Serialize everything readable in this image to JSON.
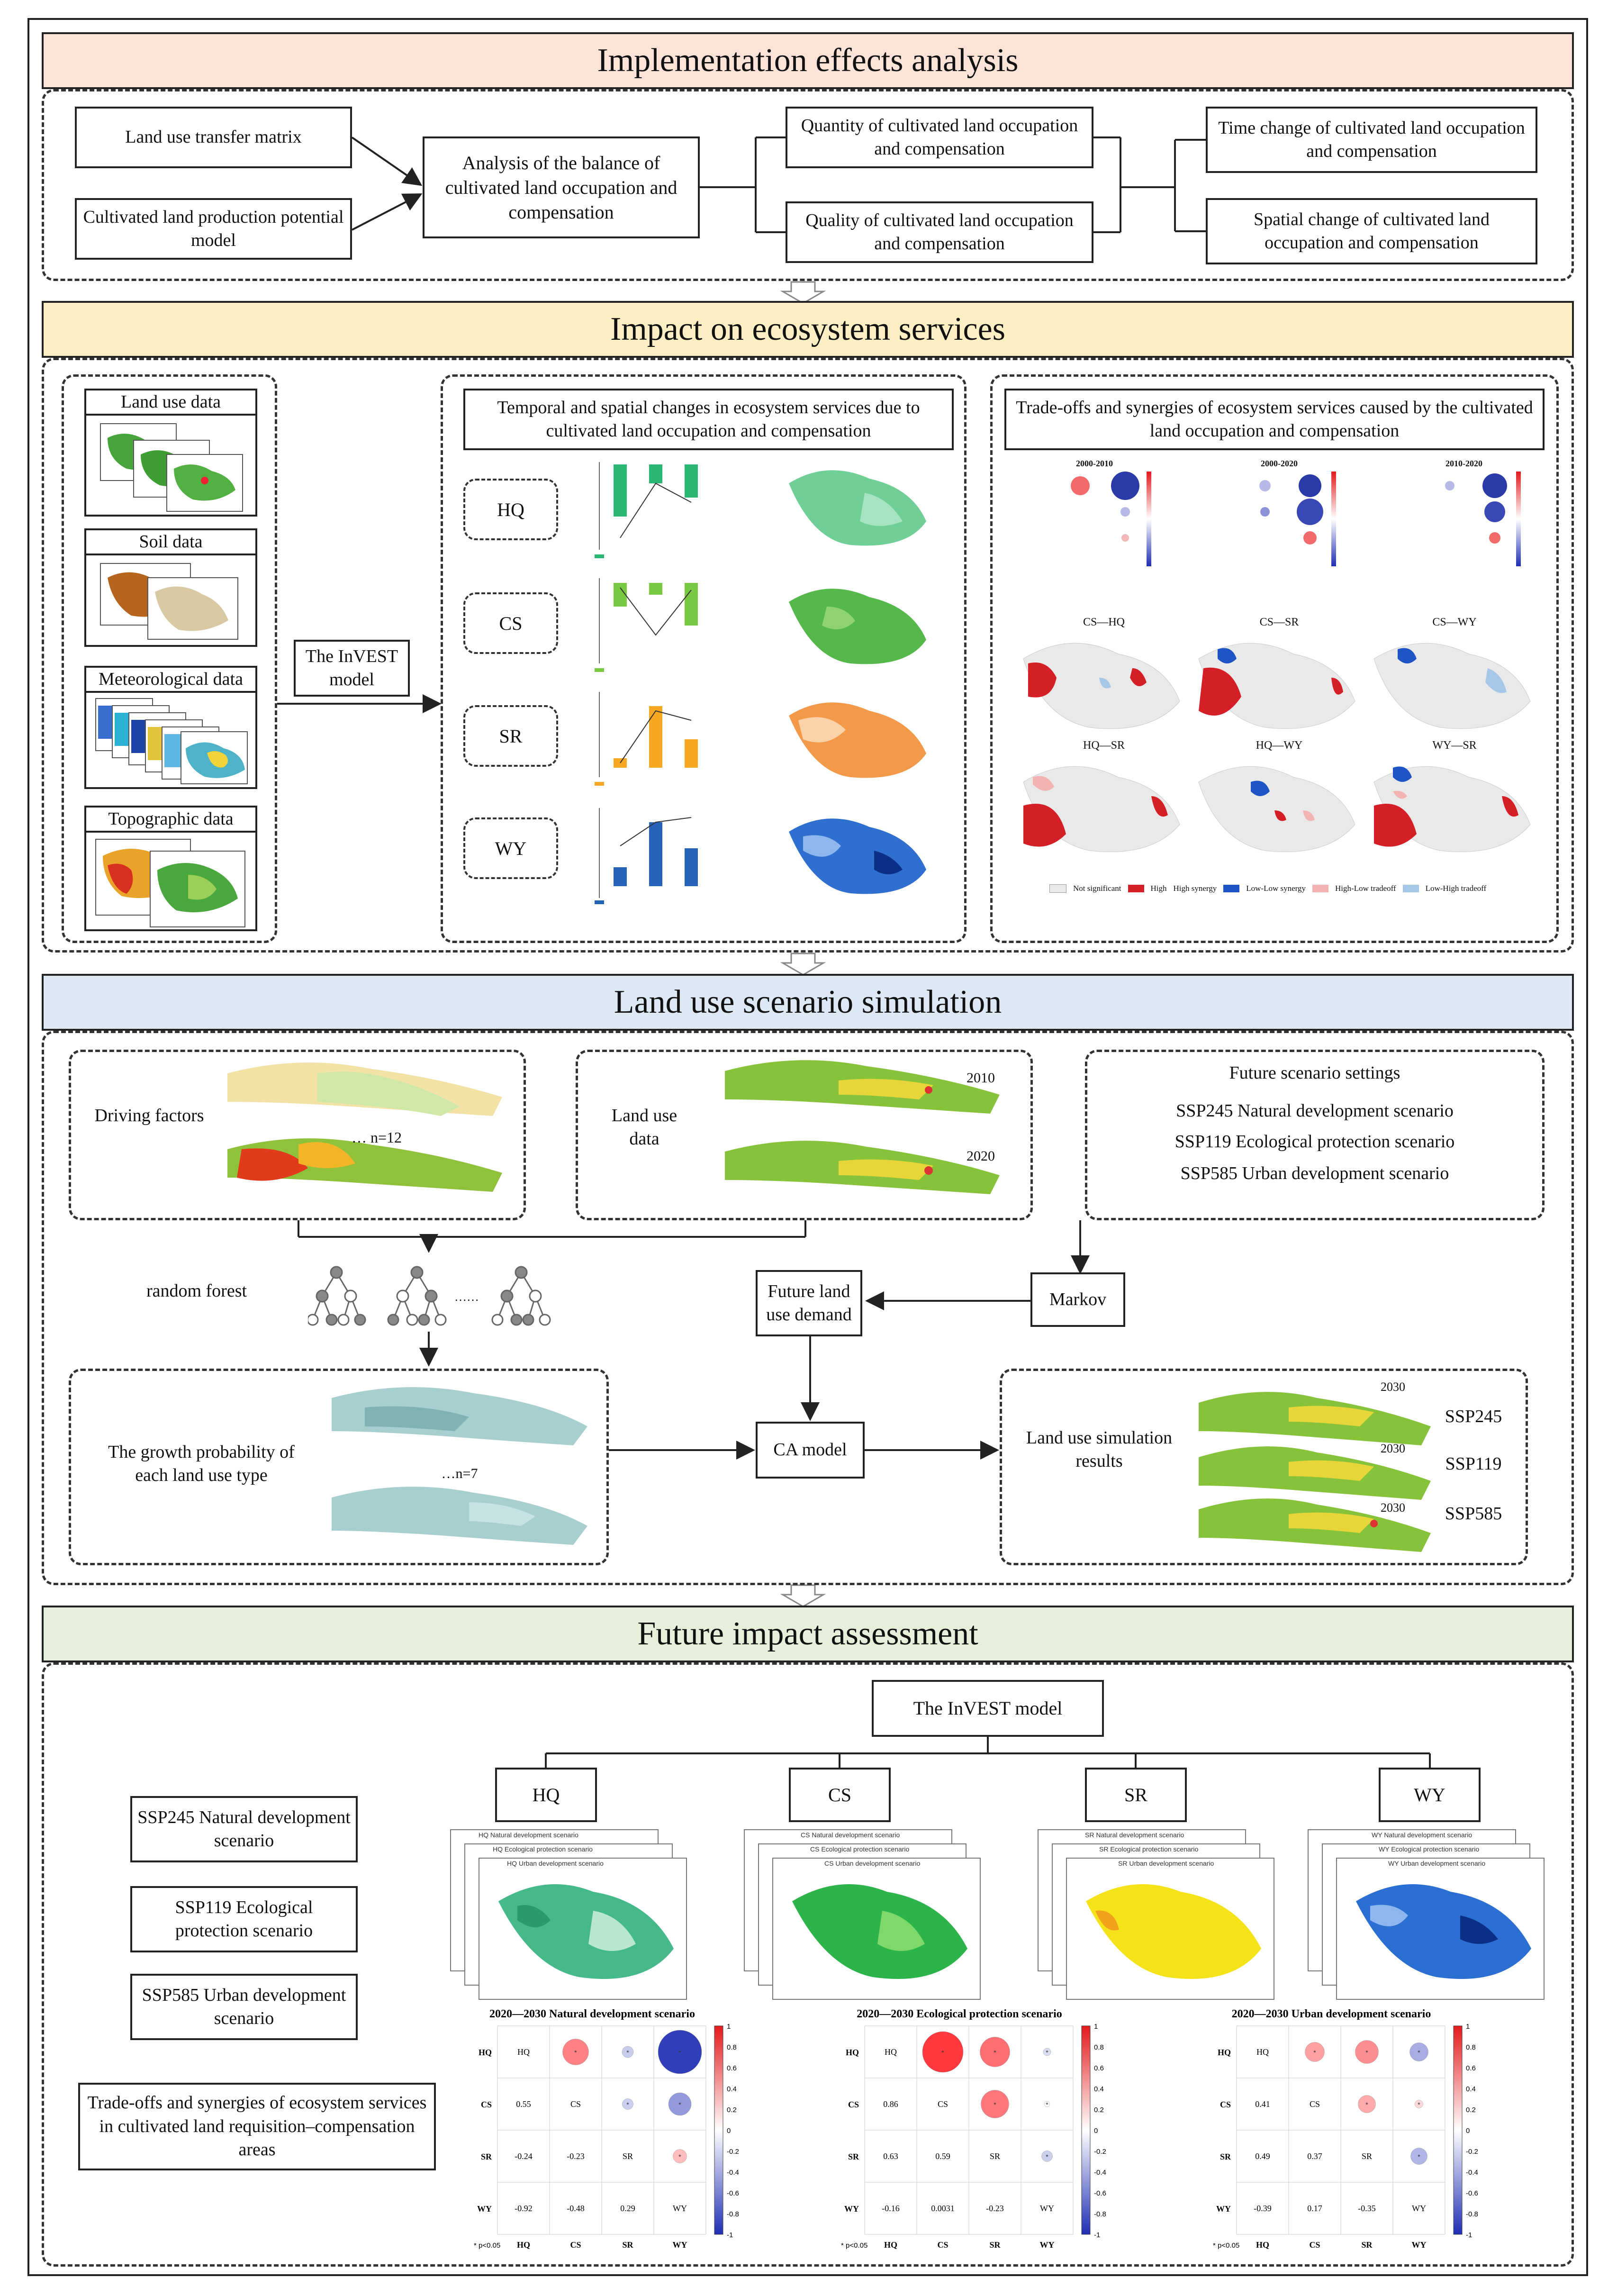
{
  "sections": {
    "s1": "Implementation effects analysis",
    "s2": "Impact on ecosystem services",
    "s3": "Land use scenario simulation",
    "s4": "Future impact assessment"
  },
  "colors": {
    "s1_band": "#fbe3d8",
    "s2_band": "#fdefc3",
    "s3_band": "#dce8f4",
    "s4_band": "#e6efd9",
    "hq": "#2bb673",
    "cs": "#7ac943",
    "sr": "#f7a823",
    "wy": "#2563b8",
    "pos": "#e31a1c",
    "neg": "#1f2eb4"
  },
  "s1": {
    "transfer_matrix": "Land use transfer matrix",
    "production_model": "Cultivated land production potential model",
    "balance_analysis": "Analysis of the balance of cultivated land occupation and compensation",
    "quantity": "Quantity of cultivated land occupation and compensation",
    "quality": "Quality of cultivated land occupation and compensation",
    "time_change": "Time change of cultivated land occupation and compensation",
    "spatial_change": "Spatial change of cultivated land occupation and compensation"
  },
  "s2": {
    "inputs": [
      "Land use data",
      "Soil data",
      "Meteorological data",
      "Topographic data"
    ],
    "invest": "The InVEST model",
    "temporal_title": "Temporal and spatial changes in ecosystem services due to cultivated land occupation and compensation",
    "services": [
      "HQ",
      "CS",
      "SR",
      "WY"
    ],
    "tradeoff_title": "Trade-offs and synergies of ecosystem services caused by the cultivated land occupation and compensation",
    "periods": [
      "2000-2010",
      "2000-2020",
      "2010-2020"
    ],
    "pair_maps": [
      "CS—HQ",
      "CS—SR",
      "CS—WY",
      "HQ—SR",
      "HQ—WY",
      "WY—SR"
    ],
    "legend": [
      "Not significant",
      "High",
      "High synergy",
      "Low-Low synergy",
      "High-Low tradeoff",
      "Low-High tradeoff"
    ]
  },
  "s3": {
    "driving_factors": "Driving factors",
    "n12": "… n=12",
    "land_use_data": "Land use data",
    "year_2010": "2010",
    "year_2020": "2020",
    "future_settings_title": "Future scenario settings",
    "scenarios": [
      "SSP245 Natural development scenario",
      "SSP119 Ecological protection scenario",
      "SSP585 Urban development scenario"
    ],
    "random_forest": "random forest",
    "dots": "……",
    "future_demand": "Future land use demand",
    "markov": "Markov",
    "growth_prob": "The growth probability of each land use type",
    "n7": "…n=7",
    "ca_model": "CA model",
    "sim_results": "Land use simulation results",
    "sim_year": "2030",
    "ssp_labels": [
      "SSP245",
      "SSP119",
      "SSP585"
    ]
  },
  "s4": {
    "invest": "The InVEST model",
    "services": [
      "HQ",
      "CS",
      "SR",
      "WY"
    ],
    "left_boxes": [
      "SSP245 Natural development scenario",
      "SSP119 Ecological protection scenario",
      "SSP585 Urban development scenario",
      "Trade-offs and synergies of ecosystem services in cultivated land requisition–compensation areas"
    ],
    "map_labels": {
      "HQ": [
        "HQ Natural development scenario",
        "HQ Ecological protection scenario",
        "HQ Urban development scenario"
      ],
      "CS": [
        "CS Natural development scenario",
        "CS Ecological protection scenario",
        "CS Urban development scenario"
      ],
      "SR": [
        "SR Natural development scenario",
        "SR Ecological protection scenario",
        "SR Urban development scenario"
      ],
      "WY": [
        "WY Natural development scenario",
        "WY Ecological protection scenario",
        "WY Urban development scenario"
      ]
    },
    "pnote": "* p<0.05",
    "colorbar_ticks": [
      "1",
      "0.8",
      "0.6",
      "0.4",
      "0.2",
      "0",
      "-0.2",
      "-0.4",
      "-0.6",
      "-0.8",
      "-1"
    ]
  },
  "chart_data": [
    {
      "type": "heatmap",
      "title": "2020—2030 Natural development scenario",
      "categories": [
        "HQ",
        "CS",
        "SR",
        "WY"
      ],
      "matrix": [
        [
          1,
          0.55,
          -0.24,
          -0.92
        ],
        [
          0.55,
          1,
          -0.23,
          -0.48
        ],
        [
          -0.24,
          -0.23,
          1,
          0.29
        ],
        [
          -0.92,
          -0.48,
          0.29,
          1
        ]
      ]
    },
    {
      "type": "heatmap",
      "title": "2020—2030 Ecological protection scenario",
      "categories": [
        "HQ",
        "CS",
        "SR",
        "WY"
      ],
      "matrix": [
        [
          1,
          0.86,
          0.63,
          -0.16
        ],
        [
          0.86,
          1,
          0.59,
          0.0031
        ],
        [
          0.63,
          0.59,
          1,
          -0.23
        ],
        [
          -0.16,
          0.0031,
          -0.23,
          1
        ]
      ]
    },
    {
      "type": "heatmap",
      "title": "2020—2030 Urban development scenario",
      "categories": [
        "HQ",
        "CS",
        "SR",
        "WY"
      ],
      "matrix": [
        [
          1,
          0.41,
          0.49,
          -0.39
        ],
        [
          0.41,
          1,
          0.37,
          0.17
        ],
        [
          0.49,
          0.37,
          1,
          -0.35
        ],
        [
          -0.39,
          0.17,
          -0.35,
          1
        ]
      ]
    }
  ]
}
